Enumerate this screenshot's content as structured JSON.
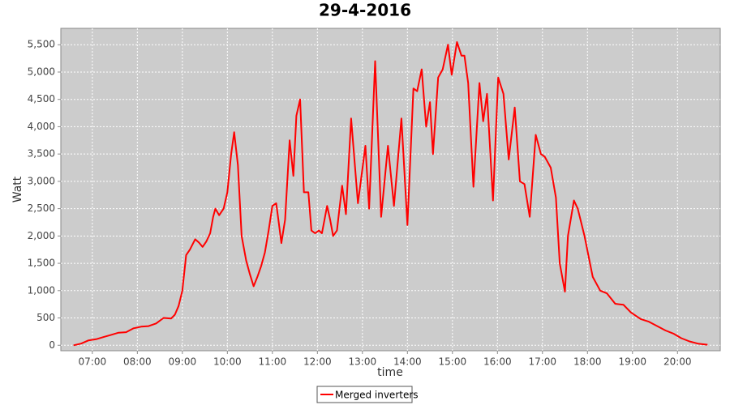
{
  "chart_data": {
    "type": "line",
    "title": "29-4-2016",
    "x_label": "time",
    "y_label": "Watt",
    "x": [
      "06:35",
      "06:45",
      "06:55",
      "07:05",
      "07:15",
      "07:25",
      "07:35",
      "07:45",
      "07:55",
      "08:05",
      "08:15",
      "08:25",
      "08:35",
      "08:45",
      "08:50",
      "08:55",
      "09:00",
      "09:05",
      "09:10",
      "09:17",
      "09:22",
      "09:27",
      "09:32",
      "09:37",
      "09:41",
      "09:44",
      "09:49",
      "09:55",
      "10:00",
      "10:05",
      "10:09",
      "10:14",
      "10:19",
      "10:25",
      "10:30",
      "10:35",
      "10:40",
      "10:45",
      "10:50",
      "10:55",
      "11:00",
      "11:05",
      "11:08",
      "11:12",
      "11:17",
      "11:23",
      "11:28",
      "11:32",
      "11:37",
      "11:42",
      "11:48",
      "11:52",
      "11:57",
      "12:02",
      "12:06",
      "12:13",
      "12:17",
      "12:21",
      "12:26",
      "12:33",
      "12:38",
      "12:45",
      "12:54",
      "13:04",
      "13:09",
      "13:17",
      "13:25",
      "13:34",
      "13:42",
      "13:52",
      "14:00",
      "14:08",
      "14:13",
      "14:19",
      "14:25",
      "14:30",
      "14:34",
      "14:41",
      "14:47",
      "14:54",
      "14:59",
      "15:06",
      "15:12",
      "15:16",
      "15:21",
      "15:28",
      "15:36",
      "15:41",
      "15:46",
      "15:54",
      "16:01",
      "16:08",
      "16:15",
      "16:23",
      "16:30",
      "16:36",
      "16:43",
      "16:51",
      "16:58",
      "17:03",
      "17:11",
      "17:18",
      "17:23",
      "17:30",
      "17:34",
      "17:42",
      "17:47",
      "17:56",
      "18:07",
      "18:17",
      "18:26",
      "18:37",
      "18:48",
      "18:58",
      "19:11",
      "19:22",
      "19:33",
      "19:44",
      "19:55",
      "20:05",
      "20:16",
      "20:27",
      "20:40"
    ],
    "series": [
      {
        "name": "Merged inverters",
        "color": "#ff0000",
        "values": [
          0,
          30,
          90,
          110,
          150,
          190,
          230,
          240,
          310,
          340,
          350,
          400,
          500,
          490,
          560,
          720,
          1000,
          1650,
          1750,
          1940,
          1880,
          1800,
          1900,
          2050,
          2350,
          2500,
          2380,
          2500,
          2800,
          3500,
          3900,
          3300,
          2000,
          1550,
          1300,
          1080,
          1250,
          1450,
          1700,
          2100,
          2550,
          2600,
          2300,
          1870,
          2300,
          3750,
          3100,
          4200,
          4500,
          2800,
          2800,
          2100,
          2050,
          2100,
          2050,
          2550,
          2300,
          2000,
          2100,
          2920,
          2400,
          4150,
          2600,
          3650,
          2500,
          5200,
          2350,
          3650,
          2550,
          4150,
          2200,
          4700,
          4650,
          5050,
          4000,
          4450,
          3500,
          4900,
          5050,
          5500,
          4950,
          5550,
          5300,
          5300,
          4800,
          2900,
          4800,
          4100,
          4600,
          2650,
          4900,
          4600,
          3400,
          4350,
          3000,
          2950,
          2350,
          3850,
          3500,
          3450,
          3250,
          2700,
          1500,
          980,
          2000,
          2650,
          2500,
          2000,
          1250,
          1000,
          950,
          760,
          740,
          600,
          480,
          430,
          350,
          270,
          210,
          130,
          70,
          30,
          10
        ]
      }
    ],
    "xlim": [
      "06:18",
      "20:57"
    ],
    "xticks": [
      "07:00",
      "08:00",
      "09:00",
      "10:00",
      "11:00",
      "12:00",
      "13:00",
      "14:00",
      "15:00",
      "16:00",
      "17:00",
      "18:00",
      "19:00",
      "20:00"
    ],
    "ylim": [
      -100,
      5800
    ],
    "yticks": [
      0,
      500,
      {
        "value": 1000,
        "label": "1,000"
      },
      {
        "value": 1500,
        "label": "1,500"
      },
      {
        "value": 2000,
        "label": "2,000"
      },
      {
        "value": 2500,
        "label": "2,500"
      },
      {
        "value": 3000,
        "label": "3,000"
      },
      {
        "value": 3500,
        "label": "3,500"
      },
      {
        "value": 4000,
        "label": "4,000"
      },
      {
        "value": 4500,
        "label": "4,500"
      },
      {
        "value": 5000,
        "label": "5,000"
      },
      {
        "value": 5500,
        "label": "5,500"
      }
    ],
    "grid": true,
    "legend": "bottom"
  }
}
